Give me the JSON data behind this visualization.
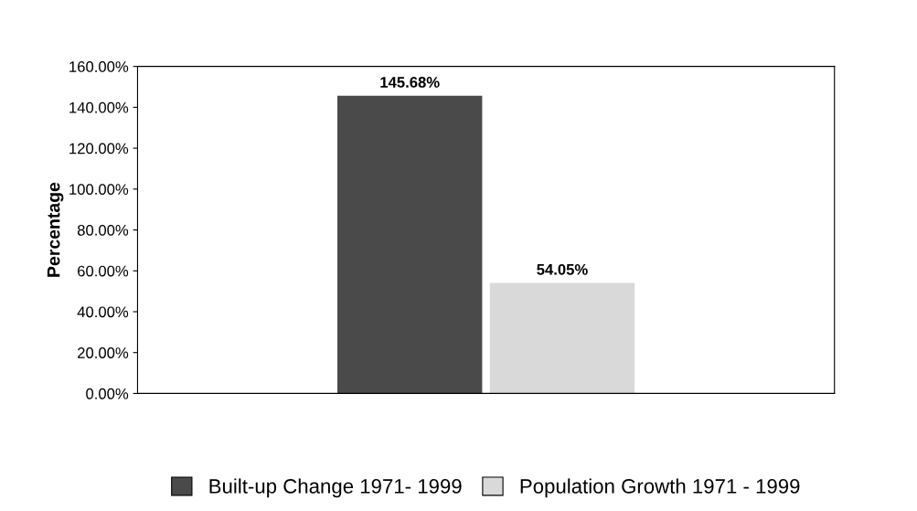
{
  "chart_data": {
    "type": "bar",
    "ylabel": "Percentage",
    "categories": [
      null
    ],
    "series": [
      {
        "name": "Built-up Change 1971- 1999",
        "color": "#4a4a4a",
        "values": [
          145.68
        ],
        "value_labels": [
          "145.68%"
        ]
      },
      {
        "name": "Population Growth 1971 - 1999",
        "color": "#d9d9d9",
        "values": [
          54.05
        ],
        "value_labels": [
          "54.05%"
        ]
      }
    ],
    "ylim": [
      0,
      160
    ],
    "yticks": [
      {
        "value": 0,
        "label": "0.00%"
      },
      {
        "value": 20,
        "label": "20.00%"
      },
      {
        "value": 40,
        "label": "40.00%"
      },
      {
        "value": 60,
        "label": "60.00%"
      },
      {
        "value": 80,
        "label": "80.00%"
      },
      {
        "value": 100,
        "label": "100.00%"
      },
      {
        "value": 120,
        "label": "120.00%"
      },
      {
        "value": 140,
        "label": "140.00%"
      },
      {
        "value": 160,
        "label": "160.00%"
      }
    ],
    "grid": false,
    "legend": "bottom"
  }
}
